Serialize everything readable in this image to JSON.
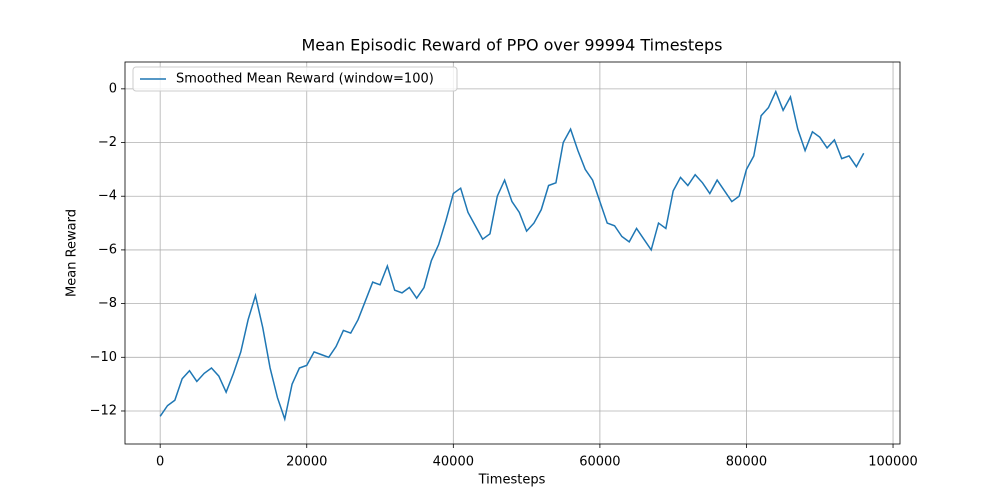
{
  "chart_data": {
    "type": "line",
    "title": "Mean Episodic Reward of PPO over 99994 Timesteps",
    "x_label": "Timesteps",
    "y_label": "Mean Reward",
    "x": [
      0,
      1000,
      2000,
      3000,
      4000,
      5000,
      6000,
      7000,
      8000,
      9000,
      10000,
      11000,
      12000,
      13000,
      14000,
      15000,
      16000,
      17000,
      18000,
      19000,
      20000,
      21000,
      22000,
      23000,
      24000,
      25000,
      26000,
      27000,
      28000,
      29000,
      30000,
      31000,
      32000,
      33000,
      34000,
      35000,
      36000,
      37000,
      38000,
      39000,
      40000,
      41000,
      42000,
      43000,
      44000,
      45000,
      46000,
      47000,
      48000,
      49000,
      50000,
      51000,
      52000,
      53000,
      54000,
      55000,
      56000,
      57000,
      58000,
      59000,
      60000,
      61000,
      62000,
      63000,
      64000,
      65000,
      66000,
      67000,
      68000,
      69000,
      70000,
      71000,
      72000,
      73000,
      74000,
      75000,
      76000,
      77000,
      78000,
      79000,
      80000,
      81000,
      82000,
      83000,
      84000,
      85000,
      86000,
      87000,
      88000,
      89000,
      90000,
      91000,
      92000,
      93000,
      94000,
      95000,
      96000
    ],
    "series": [
      {
        "name": "Smoothed Mean Reward (window=100)",
        "color": "#1f77b4",
        "values": [
          -12.2,
          -11.8,
          -11.6,
          -10.8,
          -10.5,
          -10.9,
          -10.6,
          -10.4,
          -10.7,
          -11.3,
          -10.6,
          -9.8,
          -8.6,
          -7.7,
          -8.9,
          -10.4,
          -11.5,
          -12.3,
          -11.0,
          -10.4,
          -10.3,
          -9.8,
          -9.9,
          -10.0,
          -9.6,
          -9.0,
          -9.1,
          -8.6,
          -7.9,
          -7.2,
          -7.3,
          -6.6,
          -7.5,
          -7.6,
          -7.4,
          -7.8,
          -7.4,
          -6.4,
          -5.8,
          -4.9,
          -3.9,
          -3.7,
          -4.6,
          -5.1,
          -5.6,
          -5.4,
          -4.0,
          -3.4,
          -4.2,
          -4.6,
          -5.3,
          -5.0,
          -4.5,
          -3.6,
          -3.5,
          -2.0,
          -1.5,
          -2.3,
          -3.0,
          -3.4,
          -4.2,
          -5.0,
          -5.1,
          -5.5,
          -5.7,
          -5.2,
          -5.6,
          -6.0,
          -5.0,
          -5.2,
          -3.8,
          -3.3,
          -3.6,
          -3.2,
          -3.5,
          -3.9,
          -3.4,
          -3.8,
          -4.2,
          -4.0,
          -3.0,
          -2.5,
          -1.0,
          -0.7,
          -0.1,
          -0.8,
          -0.3,
          -1.5,
          -2.3,
          -1.6,
          -1.8,
          -2.2,
          -1.9,
          -2.6,
          -2.5,
          -2.9,
          -2.4
        ]
      }
    ],
    "xlim": [
      -4800,
      100950
    ],
    "ylim": [
      -13.23,
      1.0
    ],
    "xticks": [
      0,
      20000,
      40000,
      60000,
      80000,
      100000
    ],
    "yticks": [
      {
        "value": -12,
        "label": "−12"
      },
      {
        "value": -10,
        "label": "−10"
      },
      {
        "value": -8,
        "label": "−8"
      },
      {
        "value": -6,
        "label": "−6"
      },
      {
        "value": -4,
        "label": "−4"
      },
      {
        "value": -2,
        "label": "−2"
      },
      0
    ],
    "grid": true,
    "legend": "upper left"
  }
}
